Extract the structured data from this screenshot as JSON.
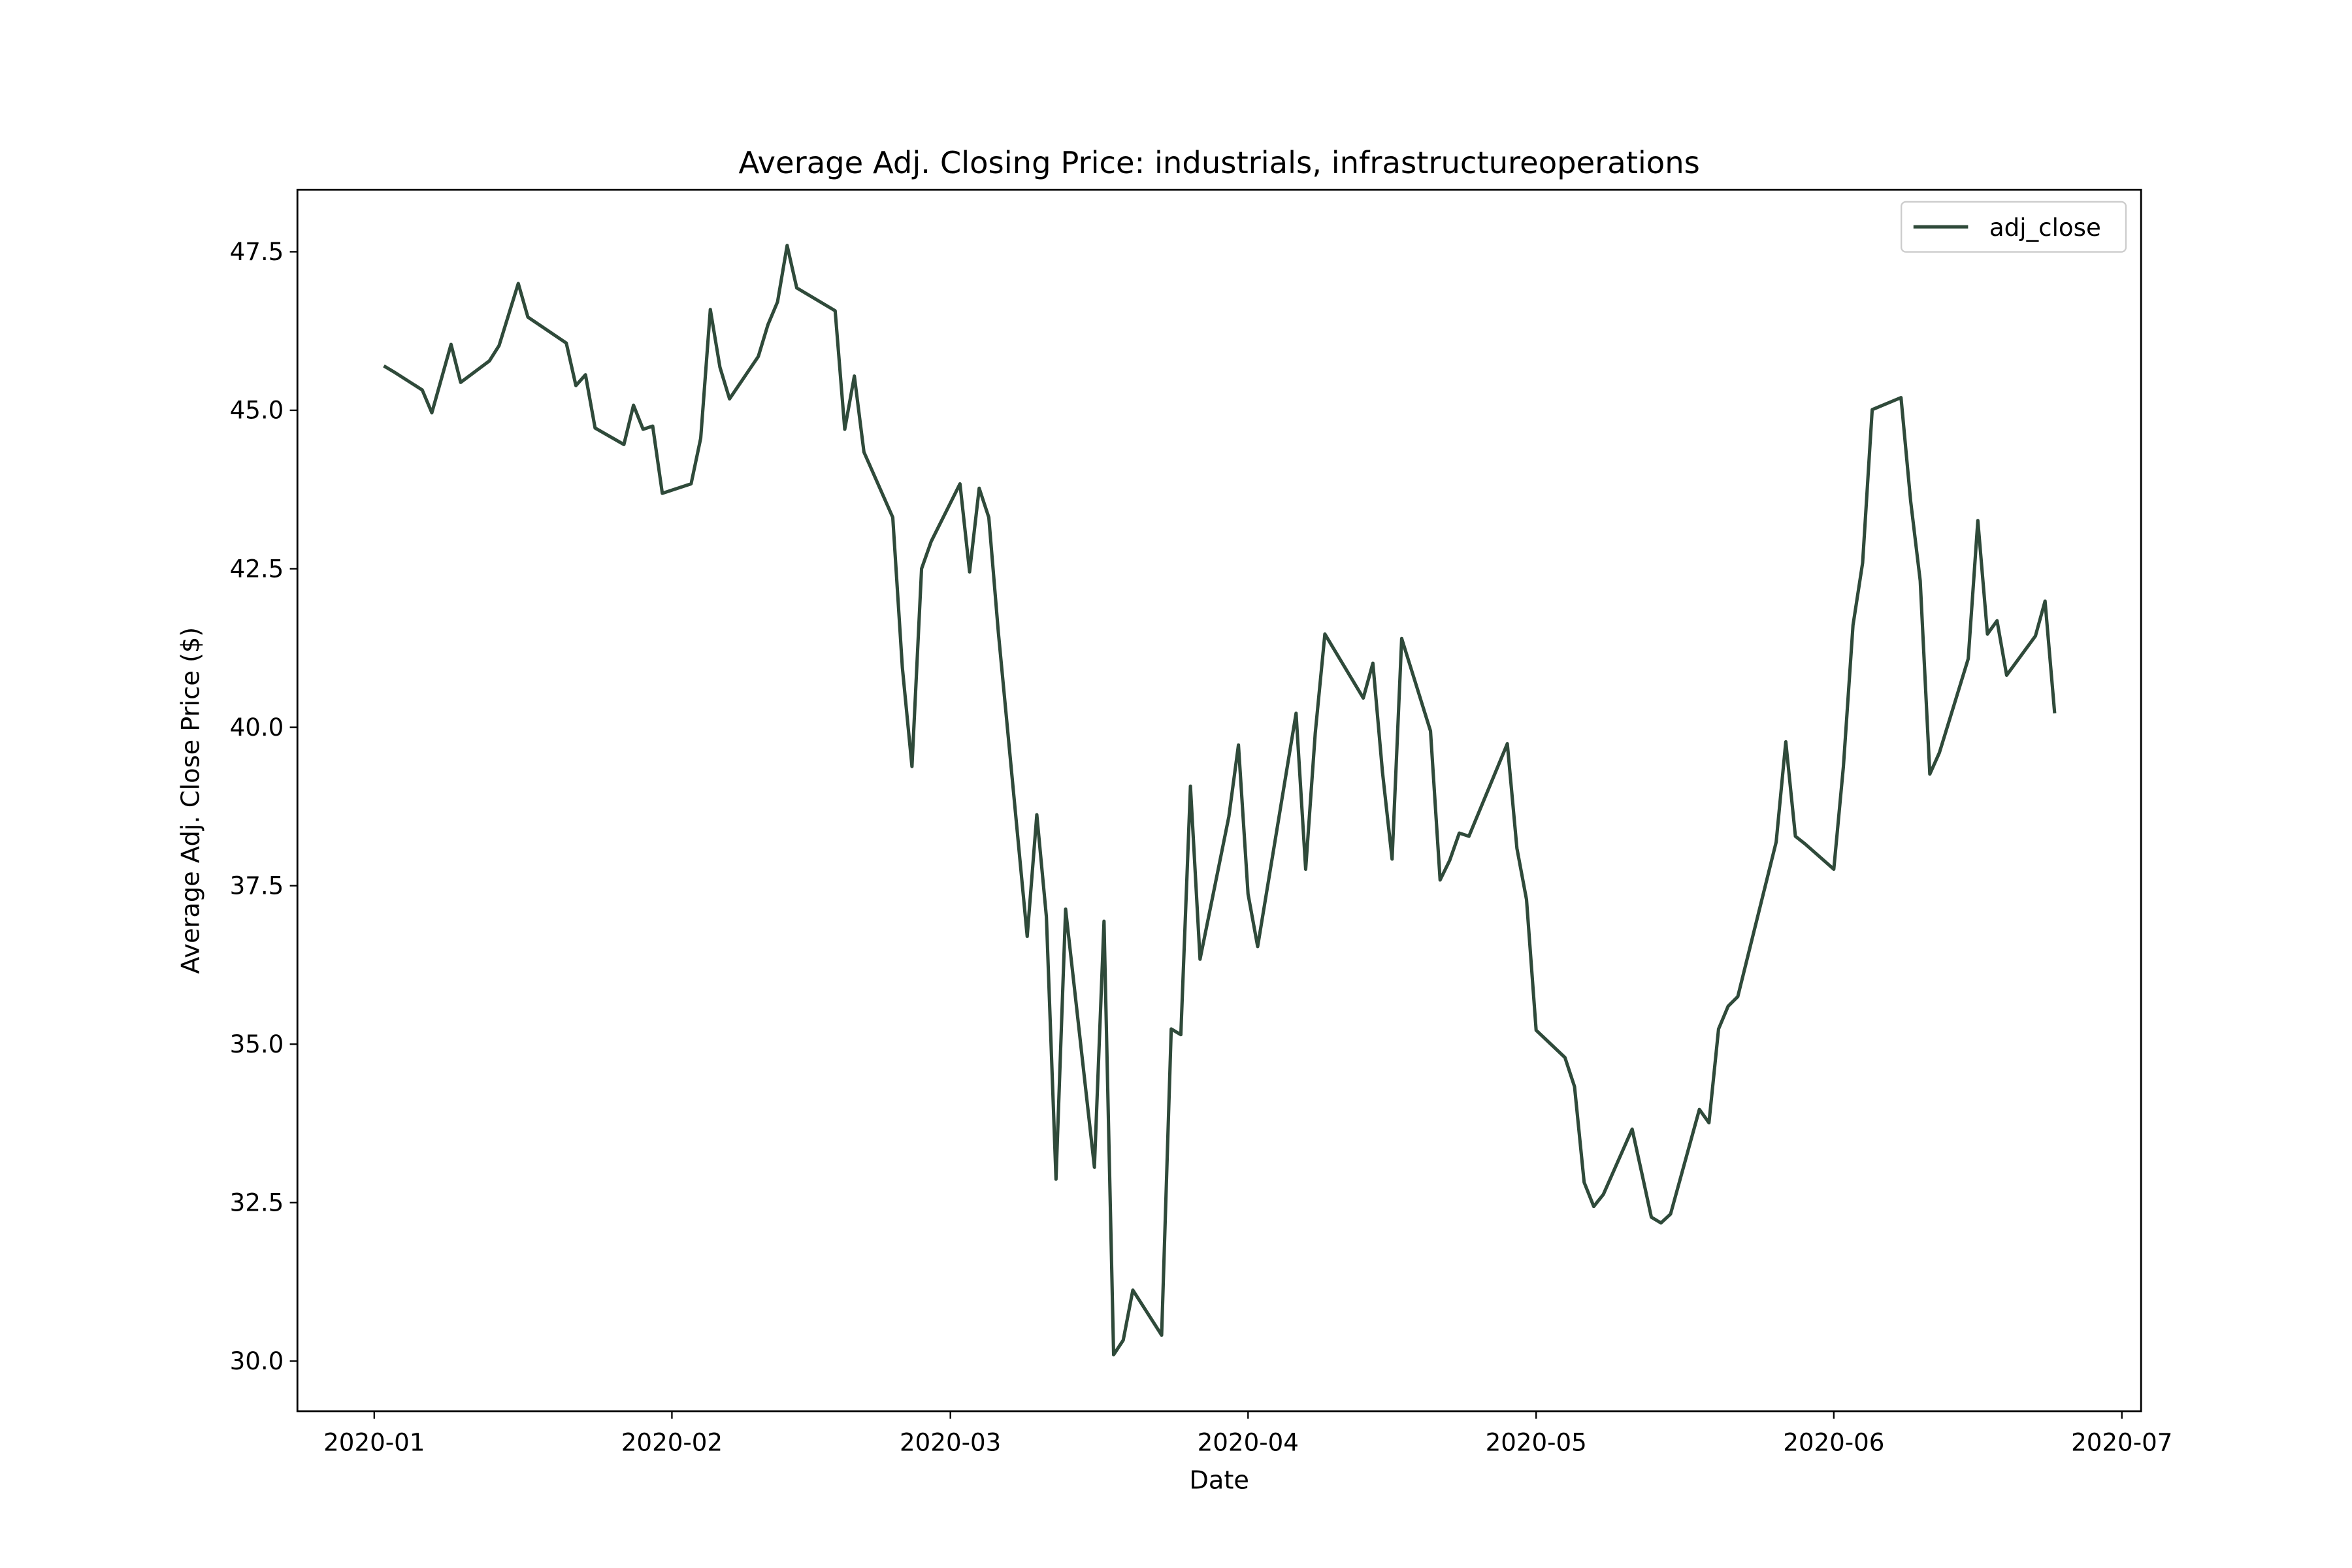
{
  "chart_data": {
    "type": "line",
    "title": "Average Adj. Closing Price: industrials, infrastructureoperations",
    "x_label": "Date",
    "y_label": "Average Adj. Close Price ($)",
    "x": [
      "2020-01-02",
      "2020-01-03",
      "2020-01-06",
      "2020-01-07",
      "2020-01-09",
      "2020-01-10",
      "2020-01-13",
      "2020-01-14",
      "2020-01-16",
      "2020-01-17",
      "2020-01-21",
      "2020-01-22",
      "2020-01-23",
      "2020-01-24",
      "2020-01-27",
      "2020-01-28",
      "2020-01-29",
      "2020-01-30",
      "2020-01-31",
      "2020-02-03",
      "2020-02-04",
      "2020-02-05",
      "2020-02-06",
      "2020-02-07",
      "2020-02-10",
      "2020-02-11",
      "2020-02-12",
      "2020-02-13",
      "2020-02-14",
      "2020-02-18",
      "2020-02-19",
      "2020-02-20",
      "2020-02-21",
      "2020-02-24",
      "2020-02-25",
      "2020-02-26",
      "2020-02-27",
      "2020-02-28",
      "2020-03-02",
      "2020-03-03",
      "2020-03-04",
      "2020-03-05",
      "2020-03-06",
      "2020-03-09",
      "2020-03-10",
      "2020-03-11",
      "2020-03-12",
      "2020-03-13",
      "2020-03-16",
      "2020-03-17",
      "2020-03-18",
      "2020-03-19",
      "2020-03-20",
      "2020-03-23",
      "2020-03-24",
      "2020-03-25",
      "2020-03-26",
      "2020-03-27",
      "2020-03-30",
      "2020-03-31",
      "2020-04-01",
      "2020-04-02",
      "2020-04-06",
      "2020-04-07",
      "2020-04-08",
      "2020-04-09",
      "2020-04-13",
      "2020-04-14",
      "2020-04-15",
      "2020-04-16",
      "2020-04-17",
      "2020-04-20",
      "2020-04-21",
      "2020-04-22",
      "2020-04-23",
      "2020-04-24",
      "2020-04-28",
      "2020-04-29",
      "2020-04-30",
      "2020-05-01",
      "2020-05-04",
      "2020-05-05",
      "2020-05-06",
      "2020-05-07",
      "2020-05-08",
      "2020-05-11",
      "2020-05-12",
      "2020-05-13",
      "2020-05-14",
      "2020-05-15",
      "2020-05-18",
      "2020-05-19",
      "2020-05-20",
      "2020-05-21",
      "2020-05-22",
      "2020-05-26",
      "2020-05-27",
      "2020-05-28",
      "2020-05-29",
      "2020-06-01",
      "2020-06-02",
      "2020-06-03",
      "2020-06-04",
      "2020-06-05",
      "2020-06-08",
      "2020-06-09",
      "2020-06-10",
      "2020-06-11",
      "2020-06-12",
      "2020-06-15",
      "2020-06-16",
      "2020-06-17",
      "2020-06-18",
      "2020-06-19",
      "2020-06-22",
      "2020-06-23",
      "2020-06-24"
    ],
    "series": [
      {
        "name": "adj_close",
        "color": "#2f4a3a",
        "values": [
          45.7,
          45.61,
          45.32,
          44.96,
          46.04,
          45.44,
          45.78,
          46.02,
          47.0,
          46.47,
          46.06,
          45.39,
          45.56,
          44.72,
          44.46,
          45.08,
          44.7,
          44.75,
          43.69,
          43.84,
          44.56,
          46.59,
          45.68,
          45.18,
          45.85,
          46.35,
          46.71,
          47.6,
          46.93,
          46.57,
          44.7,
          45.54,
          44.34,
          43.31,
          40.94,
          39.38,
          42.5,
          42.93,
          43.84,
          42.45,
          43.77,
          43.31,
          41.49,
          36.7,
          38.62,
          37.01,
          32.87,
          37.13,
          33.06,
          36.94,
          30.1,
          30.33,
          31.12,
          30.41,
          35.24,
          35.15,
          39.07,
          36.34,
          38.59,
          39.72,
          37.37,
          36.54,
          40.22,
          37.76,
          39.91,
          41.47,
          40.46,
          41.01,
          39.29,
          37.92,
          41.4,
          39.94,
          37.59,
          37.9,
          38.33,
          38.28,
          39.74,
          38.09,
          37.28,
          35.22,
          34.79,
          34.33,
          32.82,
          32.44,
          32.63,
          33.66,
          32.97,
          32.27,
          32.18,
          32.32,
          33.97,
          33.76,
          35.24,
          35.6,
          35.75,
          38.19,
          39.77,
          38.28,
          38.16,
          37.76,
          39.38,
          41.61,
          42.59,
          45.01,
          45.2,
          43.57,
          42.31,
          39.26,
          39.6,
          41.08,
          43.26,
          41.47,
          41.68,
          40.82,
          41.44,
          41.99,
          40.22
        ]
      }
    ],
    "xlim": [
      "2019-12-24",
      "2020-07-03"
    ],
    "xticks": [
      "2020-01",
      "2020-02",
      "2020-03",
      "2020-04",
      "2020-05",
      "2020-06",
      "2020-07"
    ],
    "ylim": [
      29.21,
      48.48
    ],
    "yticks": [
      30.0,
      32.5,
      35.0,
      37.5,
      40.0,
      42.5,
      45.0,
      47.5
    ],
    "ytick_labels": [
      "30.0",
      "32.5",
      "35.0",
      "37.5",
      "40.0",
      "42.5",
      "45.0",
      "47.5"
    ],
    "grid": false,
    "legend": "upper right"
  }
}
